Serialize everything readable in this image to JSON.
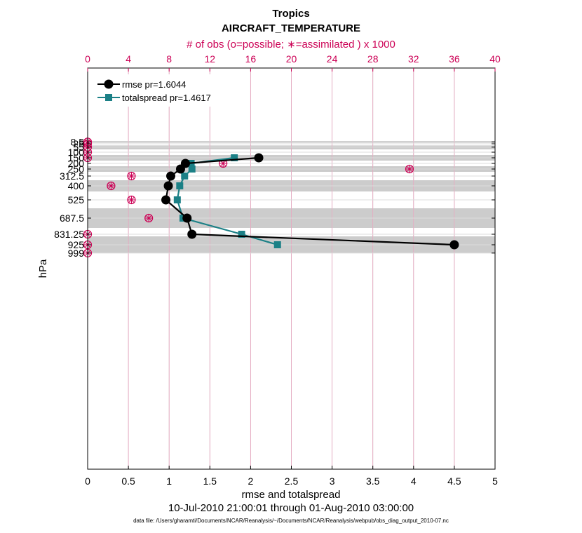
{
  "chart_data": {
    "type": "line",
    "title": "Tropics",
    "subtitle": "AIRCRAFT_TEMPERATURE",
    "top_axis_label": "# of obs (o=possible; ∗=assimilated ) x 1000",
    "xlabel": "rmse and totalspread",
    "ylabel": "hPa",
    "date_range": "10-Jul-2010 21:00:01 through 01-Aug-2010 03:00:00",
    "footnote": "data file: /Users/gharamti/Documents/NCAR/Reanalysis/~/Documents/NCAR/Reanalysis/webpub/obs_diag_output_2010-07.nc",
    "xlim": [
      0,
      5
    ],
    "x_ticks": [
      0,
      0.5,
      1,
      1.5,
      2,
      2.5,
      3,
      3.5,
      4,
      4.5,
      5
    ],
    "x_tick_labels": [
      "0",
      "0.5",
      "1",
      "1.5",
      "2",
      "2.5",
      "3",
      "3.5",
      "4",
      "4.5",
      "5"
    ],
    "top_xlim": [
      0,
      40
    ],
    "top_ticks": [
      0,
      4,
      8,
      12,
      16,
      20,
      24,
      28,
      32,
      36,
      40
    ],
    "top_tick_labels": [
      "0",
      "4",
      "8",
      "12",
      "16",
      "20",
      "24",
      "28",
      "32",
      "36",
      "40"
    ],
    "levels": [
      8.5,
      25,
      55,
      100,
      150,
      200,
      250,
      312.5,
      400,
      525,
      687.5,
      831.25,
      925,
      999
    ],
    "level_labels": [
      "8.5",
      "25",
      "55",
      "100",
      "150",
      "200",
      "250",
      "312.5",
      "400",
      "525",
      "687.5",
      "831.25",
      "925",
      "999"
    ],
    "shaded_bands": [
      [
        0,
        17
      ],
      [
        40,
        75
      ],
      [
        125,
        175
      ],
      [
        225,
        275
      ],
      [
        350,
        450
      ],
      [
        600,
        775
      ],
      [
        850,
        1000
      ]
    ],
    "series": [
      {
        "name": "rmse",
        "legend": "rmse pr=1.6044",
        "color": "#000000",
        "marker": "circle",
        "points": [
          [
            2.1,
            150
          ],
          [
            1.2,
            200
          ],
          [
            1.14,
            250
          ],
          [
            1.02,
            312.5
          ],
          [
            0.99,
            400
          ],
          [
            0.96,
            525
          ],
          [
            1.22,
            687.5
          ],
          [
            1.28,
            831.25
          ],
          [
            4.5,
            925
          ]
        ]
      },
      {
        "name": "totalspread",
        "legend": "totalspread pr=1.4617",
        "color": "#1b8086",
        "marker": "square",
        "points": [
          [
            1.8,
            150
          ],
          [
            1.27,
            200
          ],
          [
            1.28,
            250
          ],
          [
            1.19,
            312.5
          ],
          [
            1.13,
            400
          ],
          [
            1.1,
            525
          ],
          [
            1.17,
            687.5
          ],
          [
            1.89,
            831.25
          ],
          [
            2.33,
            925
          ]
        ]
      }
    ],
    "obs_counts": {
      "name": "# of obs (assimilated) x 1000",
      "color": "#cc0055",
      "points": [
        [
          0,
          8.5
        ],
        [
          0,
          25
        ],
        [
          0,
          55
        ],
        [
          0,
          100
        ],
        [
          0,
          150
        ],
        [
          13.3,
          200
        ],
        [
          31.6,
          250
        ],
        [
          4.3,
          312.5
        ],
        [
          2.3,
          400
        ],
        [
          4.3,
          525
        ],
        [
          6.0,
          687.5
        ],
        [
          0,
          831.25
        ],
        [
          0,
          925
        ],
        [
          0,
          999
        ]
      ]
    }
  }
}
